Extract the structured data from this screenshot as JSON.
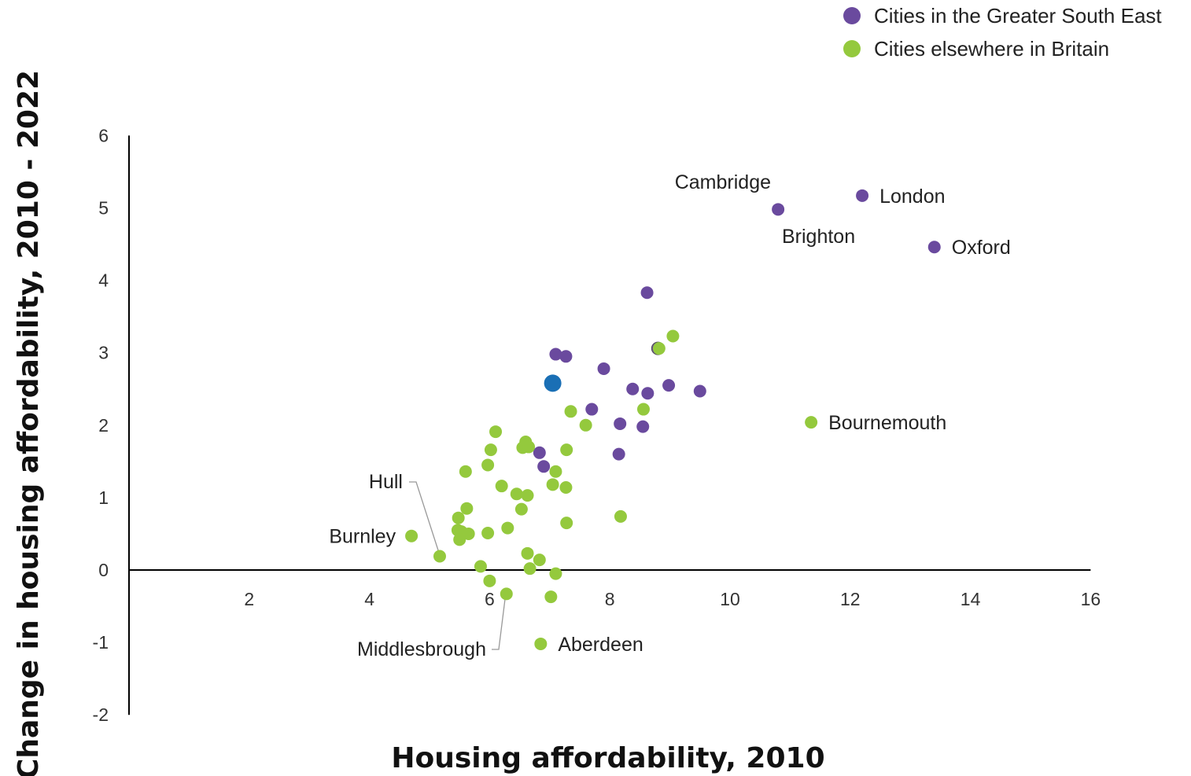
{
  "chart_data": {
    "type": "scatter",
    "xlabel": "Housing affordability, 2010",
    "ylabel": "Change in housing affordability, 2010 - 2022",
    "xlim": [
      0,
      16
    ],
    "ylim": [
      -2,
      6
    ],
    "x_ticks": [
      "2",
      "4",
      "6",
      "8",
      "10",
      "12",
      "14",
      "16"
    ],
    "y_ticks": [
      "-2",
      "-1",
      "0",
      "1",
      "2",
      "3",
      "4",
      "5",
      "6"
    ],
    "grid": false,
    "legend_position": "top-right",
    "series": [
      {
        "name": "Cities in the Greater South East",
        "color": "#6a4a9e",
        "points": [
          {
            "x": 12.2,
            "y": 5.17,
            "label": "London"
          },
          {
            "x": 10.8,
            "y": 4.98,
            "label": ""
          },
          {
            "x": 13.4,
            "y": 4.46,
            "label": "Oxford"
          },
          {
            "x": 8.62,
            "y": 3.83,
            "label": ""
          },
          {
            "x": 7.1,
            "y": 2.98,
            "label": ""
          },
          {
            "x": 7.27,
            "y": 2.95,
            "label": ""
          },
          {
            "x": 8.8,
            "y": 3.06,
            "label": ""
          },
          {
            "x": 7.9,
            "y": 2.78,
            "label": ""
          },
          {
            "x": 8.38,
            "y": 2.5,
            "label": ""
          },
          {
            "x": 8.63,
            "y": 2.44,
            "label": ""
          },
          {
            "x": 8.98,
            "y": 2.55,
            "label": ""
          },
          {
            "x": 9.5,
            "y": 2.47,
            "label": ""
          },
          {
            "x": 7.7,
            "y": 2.22,
            "label": ""
          },
          {
            "x": 8.17,
            "y": 2.02,
            "label": ""
          },
          {
            "x": 8.55,
            "y": 1.98,
            "label": ""
          },
          {
            "x": 6.83,
            "y": 1.62,
            "label": ""
          },
          {
            "x": 8.15,
            "y": 1.6,
            "label": ""
          },
          {
            "x": 6.9,
            "y": 1.43,
            "label": ""
          }
        ]
      },
      {
        "name": "Cities elsewhere in Britain",
        "color": "#94c93d",
        "points": [
          {
            "x": 11.35,
            "y": 2.04,
            "label": "Bournemouth"
          },
          {
            "x": 9.05,
            "y": 3.23,
            "label": ""
          },
          {
            "x": 8.82,
            "y": 3.06,
            "label": ""
          },
          {
            "x": 8.56,
            "y": 2.22,
            "label": ""
          },
          {
            "x": 7.35,
            "y": 2.19,
            "label": ""
          },
          {
            "x": 7.6,
            "y": 2.0,
            "label": ""
          },
          {
            "x": 6.1,
            "y": 1.91,
            "label": ""
          },
          {
            "x": 6.6,
            "y": 1.77,
            "label": ""
          },
          {
            "x": 6.55,
            "y": 1.69,
            "label": ""
          },
          {
            "x": 6.65,
            "y": 1.7,
            "label": ""
          },
          {
            "x": 6.02,
            "y": 1.66,
            "label": ""
          },
          {
            "x": 7.28,
            "y": 1.66,
            "label": ""
          },
          {
            "x": 5.97,
            "y": 1.45,
            "label": ""
          },
          {
            "x": 5.6,
            "y": 1.36,
            "label": ""
          },
          {
            "x": 7.1,
            "y": 1.36,
            "label": ""
          },
          {
            "x": 6.2,
            "y": 1.16,
            "label": ""
          },
          {
            "x": 7.05,
            "y": 1.18,
            "label": ""
          },
          {
            "x": 7.27,
            "y": 1.14,
            "label": ""
          },
          {
            "x": 6.45,
            "y": 1.05,
            "label": ""
          },
          {
            "x": 6.63,
            "y": 1.03,
            "label": ""
          },
          {
            "x": 5.62,
            "y": 0.85,
            "label": ""
          },
          {
            "x": 6.53,
            "y": 0.84,
            "label": ""
          },
          {
            "x": 8.18,
            "y": 0.74,
            "label": ""
          },
          {
            "x": 5.48,
            "y": 0.72,
            "label": ""
          },
          {
            "x": 7.28,
            "y": 0.65,
            "label": ""
          },
          {
            "x": 6.3,
            "y": 0.58,
            "label": ""
          },
          {
            "x": 5.47,
            "y": 0.55,
            "label": ""
          },
          {
            "x": 5.53,
            "y": 0.53,
            "label": ""
          },
          {
            "x": 5.65,
            "y": 0.5,
            "label": ""
          },
          {
            "x": 5.97,
            "y": 0.51,
            "label": ""
          },
          {
            "x": 5.5,
            "y": 0.42,
            "label": ""
          },
          {
            "x": 4.7,
            "y": 0.47,
            "label": "Burnley"
          },
          {
            "x": 6.63,
            "y": 0.23,
            "label": ""
          },
          {
            "x": 6.83,
            "y": 0.14,
            "label": ""
          },
          {
            "x": 5.17,
            "y": 0.19,
            "label": "Hull"
          },
          {
            "x": 5.85,
            "y": 0.05,
            "label": ""
          },
          {
            "x": 6.67,
            "y": 0.02,
            "label": ""
          },
          {
            "x": 7.1,
            "y": -0.05,
            "label": ""
          },
          {
            "x": 6.0,
            "y": -0.15,
            "label": ""
          },
          {
            "x": 6.28,
            "y": -0.33,
            "label": "Middlesbrough"
          },
          {
            "x": 7.02,
            "y": -0.37,
            "label": ""
          },
          {
            "x": 6.85,
            "y": -1.02,
            "label": "Aberdeen"
          }
        ]
      },
      {
        "name": "",
        "color": "#1a6fb5",
        "points": [
          {
            "x": 7.05,
            "y": 2.58,
            "label": ""
          }
        ]
      }
    ],
    "annotations": [
      {
        "text": "Cambridge"
      },
      {
        "text": "Brighton"
      }
    ]
  }
}
